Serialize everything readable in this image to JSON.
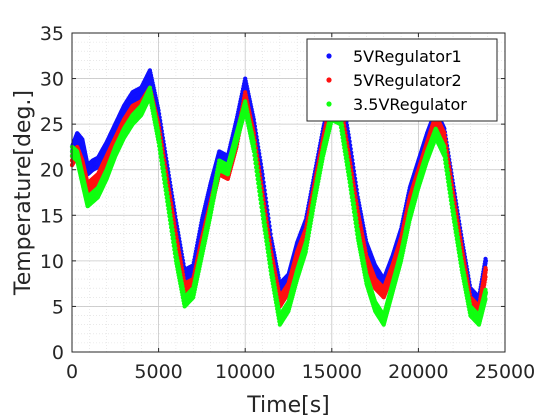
{
  "chart_data": {
    "type": "scatter",
    "title": "",
    "xlabel": "Time[s]",
    "ylabel": "Temperature[deg.]",
    "xlim": [
      0,
      25000
    ],
    "ylim": [
      0,
      35
    ],
    "x_ticks": [
      0,
      5000,
      10000,
      15000,
      20000,
      25000
    ],
    "y_ticks": [
      0,
      5,
      10,
      15,
      20,
      25,
      30,
      35
    ],
    "x_tick_labels": [
      "0",
      "5000",
      "10000",
      "15000",
      "20000",
      "25000"
    ],
    "y_tick_labels": [
      "0",
      "5",
      "10",
      "15",
      "20",
      "25",
      "30",
      "35"
    ],
    "grid": true,
    "minor_grid": true,
    "legend_position": "top-right",
    "series": [
      {
        "name": "5VRegulator1",
        "color": "#1010ff",
        "points": [
          [
            0,
            22.0
          ],
          [
            300,
            23.5
          ],
          [
            600,
            22.8
          ],
          [
            900,
            20.0
          ],
          [
            1200,
            20.5
          ],
          [
            1500,
            20.8
          ],
          [
            2000,
            22.5
          ],
          [
            2500,
            24.5
          ],
          [
            3000,
            26.5
          ],
          [
            3500,
            28.0
          ],
          [
            4000,
            28.5
          ],
          [
            4500,
            30.4
          ],
          [
            5000,
            26.0
          ],
          [
            5500,
            20.0
          ],
          [
            6000,
            14.0
          ],
          [
            6500,
            8.5
          ],
          [
            7000,
            9.0
          ],
          [
            7500,
            14.0
          ],
          [
            8000,
            18.0
          ],
          [
            8500,
            21.5
          ],
          [
            9000,
            21.0
          ],
          [
            9500,
            25.0
          ],
          [
            10000,
            29.5
          ],
          [
            10500,
            25.0
          ],
          [
            11000,
            19.0
          ],
          [
            11500,
            12.0
          ],
          [
            12000,
            7.0
          ],
          [
            12500,
            8.0
          ],
          [
            13000,
            11.5
          ],
          [
            13500,
            14.0
          ],
          [
            14000,
            19.0
          ],
          [
            14500,
            24.0
          ],
          [
            15000,
            28.0
          ],
          [
            15500,
            28.5
          ],
          [
            16000,
            23.0
          ],
          [
            16500,
            16.5
          ],
          [
            17000,
            11.5
          ],
          [
            17500,
            9.0
          ],
          [
            18000,
            7.5
          ],
          [
            18500,
            10.0
          ],
          [
            19000,
            13.0
          ],
          [
            19500,
            17.5
          ],
          [
            20000,
            20.5
          ],
          [
            20500,
            23.5
          ],
          [
            21000,
            26.0
          ],
          [
            21500,
            24.0
          ],
          [
            22000,
            18.0
          ],
          [
            22500,
            12.0
          ],
          [
            23000,
            6.5
          ],
          [
            23500,
            5.5
          ],
          [
            23900,
            10.0
          ]
        ]
      },
      {
        "name": "5VRegulator2",
        "color": "#ff1010",
        "points": [
          [
            0,
            21.0
          ],
          [
            300,
            22.0
          ],
          [
            600,
            20.5
          ],
          [
            900,
            18.0
          ],
          [
            1200,
            18.5
          ],
          [
            1500,
            19.0
          ],
          [
            2000,
            21.0
          ],
          [
            2500,
            23.0
          ],
          [
            3000,
            25.0
          ],
          [
            3500,
            26.5
          ],
          [
            4000,
            27.0
          ],
          [
            4500,
            28.5
          ],
          [
            5000,
            24.5
          ],
          [
            5500,
            18.5
          ],
          [
            6000,
            12.5
          ],
          [
            6500,
            7.0
          ],
          [
            7000,
            7.5
          ],
          [
            7500,
            12.0
          ],
          [
            8000,
            16.0
          ],
          [
            8500,
            20.0
          ],
          [
            9000,
            19.5
          ],
          [
            9500,
            23.0
          ],
          [
            10000,
            28.0
          ],
          [
            10500,
            23.5
          ],
          [
            11000,
            17.0
          ],
          [
            11500,
            10.5
          ],
          [
            12000,
            5.5
          ],
          [
            12500,
            7.0
          ],
          [
            13000,
            10.5
          ],
          [
            13500,
            13.0
          ],
          [
            14000,
            18.0
          ],
          [
            14500,
            23.0
          ],
          [
            15000,
            27.5
          ],
          [
            15500,
            27.0
          ],
          [
            16000,
            21.0
          ],
          [
            16500,
            15.0
          ],
          [
            17000,
            10.0
          ],
          [
            17500,
            7.5
          ],
          [
            18000,
            6.5
          ],
          [
            18500,
            9.0
          ],
          [
            19000,
            12.0
          ],
          [
            19500,
            16.5
          ],
          [
            20000,
            19.5
          ],
          [
            20500,
            22.5
          ],
          [
            21000,
            25.5
          ],
          [
            21500,
            23.5
          ],
          [
            22000,
            17.0
          ],
          [
            22500,
            11.0
          ],
          [
            23000,
            5.5
          ],
          [
            23500,
            4.5
          ],
          [
            23900,
            9.0
          ]
        ]
      },
      {
        "name": "3.5VRegulator",
        "color": "#10ff10",
        "points": [
          [
            0,
            22.0
          ],
          [
            300,
            21.5
          ],
          [
            600,
            19.0
          ],
          [
            900,
            16.5
          ],
          [
            1200,
            17.0
          ],
          [
            1500,
            17.5
          ],
          [
            2000,
            19.5
          ],
          [
            2500,
            22.0
          ],
          [
            3000,
            24.0
          ],
          [
            3500,
            25.5
          ],
          [
            4000,
            26.5
          ],
          [
            4500,
            28.5
          ],
          [
            5000,
            23.5
          ],
          [
            5500,
            17.0
          ],
          [
            6000,
            10.5
          ],
          [
            6500,
            5.5
          ],
          [
            7000,
            6.5
          ],
          [
            7500,
            11.0
          ],
          [
            8000,
            15.5
          ],
          [
            8500,
            20.5
          ],
          [
            9000,
            20.0
          ],
          [
            9500,
            23.5
          ],
          [
            10000,
            27.0
          ],
          [
            10500,
            22.5
          ],
          [
            11000,
            15.5
          ],
          [
            11500,
            9.0
          ],
          [
            12000,
            3.5
          ],
          [
            12500,
            5.0
          ],
          [
            13000,
            8.5
          ],
          [
            13500,
            11.5
          ],
          [
            14000,
            17.0
          ],
          [
            14500,
            22.0
          ],
          [
            15000,
            26.0
          ],
          [
            15500,
            25.5
          ],
          [
            16000,
            19.5
          ],
          [
            16500,
            13.0
          ],
          [
            17000,
            8.0
          ],
          [
            17500,
            5.0
          ],
          [
            18000,
            3.5
          ],
          [
            18500,
            7.0
          ],
          [
            19000,
            10.5
          ],
          [
            19500,
            15.0
          ],
          [
            20000,
            18.5
          ],
          [
            20500,
            21.5
          ],
          [
            21000,
            24.0
          ],
          [
            21500,
            22.0
          ],
          [
            22000,
            15.5
          ],
          [
            22500,
            9.5
          ],
          [
            23000,
            4.5
          ],
          [
            23500,
            3.5
          ],
          [
            23900,
            6.5
          ]
        ]
      }
    ]
  }
}
